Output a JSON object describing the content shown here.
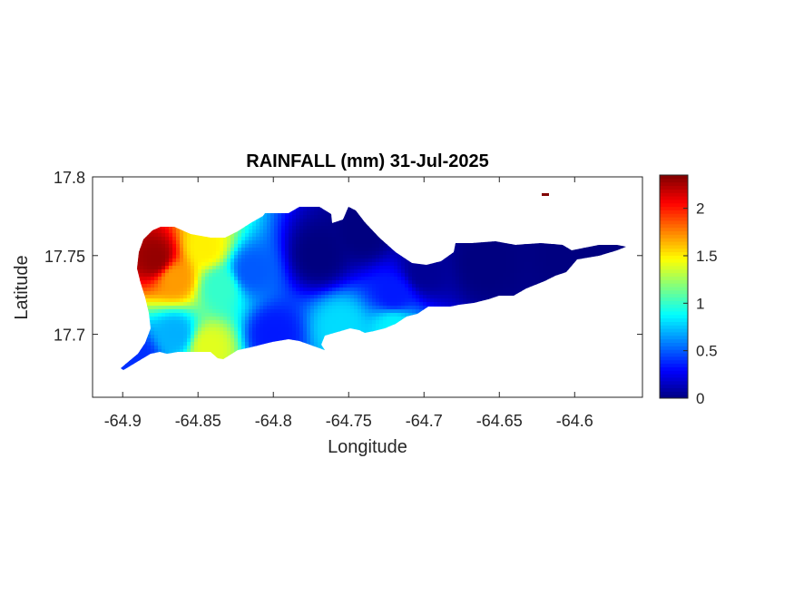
{
  "chart_data": {
    "type": "heatmap",
    "title": "RAINFALL (mm) 31-Jul-2025",
    "xlabel": "Longitude",
    "ylabel": "Latitude",
    "xlim": [
      -64.92,
      -64.555
    ],
    "ylim": [
      17.66,
      17.8
    ],
    "xticks": [
      -64.9,
      -64.85,
      -64.8,
      -64.75,
      -64.7,
      -64.65,
      -64.6
    ],
    "xtick_labels": [
      "-64.9",
      "-64.85",
      "-64.8",
      "-64.75",
      "-64.7",
      "-64.65",
      "-64.6"
    ],
    "yticks": [
      17.7,
      17.75,
      17.8
    ],
    "ytick_labels": [
      "17.7",
      "17.75",
      "17.8"
    ],
    "colormap": "jet",
    "colorbar": {
      "range": [
        0,
        2.35
      ],
      "ticks": [
        0,
        0.5,
        1,
        1.5,
        2
      ],
      "tick_labels": [
        "0",
        "0.5",
        "1",
        "1.5",
        "2"
      ]
    },
    "rainfall_centers": [
      {
        "lon": -64.878,
        "lat": 17.748,
        "value": 2.3
      },
      {
        "lon": -64.865,
        "lat": 17.735,
        "value": 1.7
      },
      {
        "lon": -64.845,
        "lat": 17.755,
        "value": 1.5
      },
      {
        "lon": -64.835,
        "lat": 17.73,
        "value": 1.0
      },
      {
        "lon": -64.843,
        "lat": 17.692,
        "value": 1.4
      },
      {
        "lon": -64.865,
        "lat": 17.7,
        "value": 0.7
      },
      {
        "lon": -64.89,
        "lat": 17.685,
        "value": 0.4
      },
      {
        "lon": -64.815,
        "lat": 17.74,
        "value": 0.5
      },
      {
        "lon": -64.8,
        "lat": 17.7,
        "value": 0.35
      },
      {
        "lon": -64.755,
        "lat": 17.705,
        "value": 0.8
      },
      {
        "lon": -64.72,
        "lat": 17.705,
        "value": 0.85
      },
      {
        "lon": -64.72,
        "lat": 17.725,
        "value": 0.35
      },
      {
        "lon": -64.77,
        "lat": 17.75,
        "value": 0.0
      },
      {
        "lon": -64.74,
        "lat": 17.765,
        "value": 0.0
      },
      {
        "lon": -64.7,
        "lat": 17.74,
        "value": 0.05
      },
      {
        "lon": -64.66,
        "lat": 17.745,
        "value": 0.0
      },
      {
        "lon": -64.6,
        "lat": 17.752,
        "value": 0.0
      }
    ]
  }
}
